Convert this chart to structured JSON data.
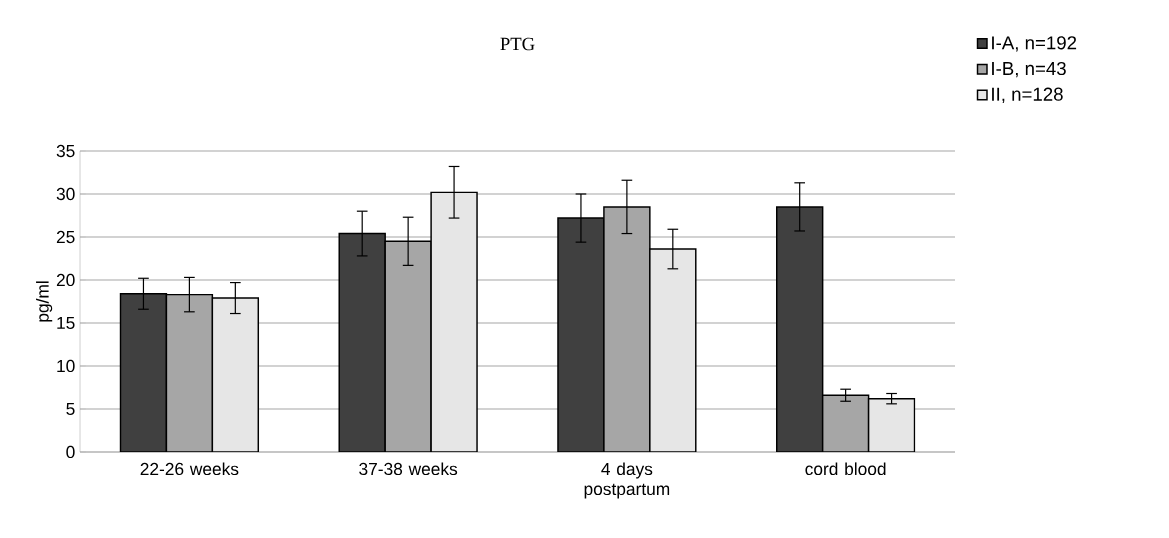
{
  "chart_data": {
    "type": "bar",
    "title": "PTG",
    "ylabel": "pg/ml",
    "categories": [
      "22-26 weeks",
      "37-38 weeks",
      "4 days postpartum",
      "cord blood"
    ],
    "series": [
      {
        "name": "I-A, n=192",
        "color": "#404040",
        "values": [
          18.4,
          25.4,
          27.2,
          28.5
        ],
        "errors": [
          1.8,
          2.6,
          2.8,
          2.8
        ]
      },
      {
        "name": "I-B, n=43",
        "color": "#a6a6a6",
        "values": [
          18.3,
          24.5,
          28.5,
          6.6
        ],
        "errors": [
          2.0,
          2.8,
          3.1,
          0.7
        ]
      },
      {
        "name": "II, n=128",
        "color": "#e6e6e6",
        "values": [
          17.9,
          30.2,
          23.6,
          6.2
        ],
        "errors": [
          1.8,
          3.0,
          2.3,
          0.6
        ]
      }
    ],
    "ylim": [
      0,
      35
    ],
    "yticks": [
      0,
      5,
      10,
      15,
      20,
      25,
      30,
      35
    ],
    "grid": "y",
    "legend": "top right"
  }
}
